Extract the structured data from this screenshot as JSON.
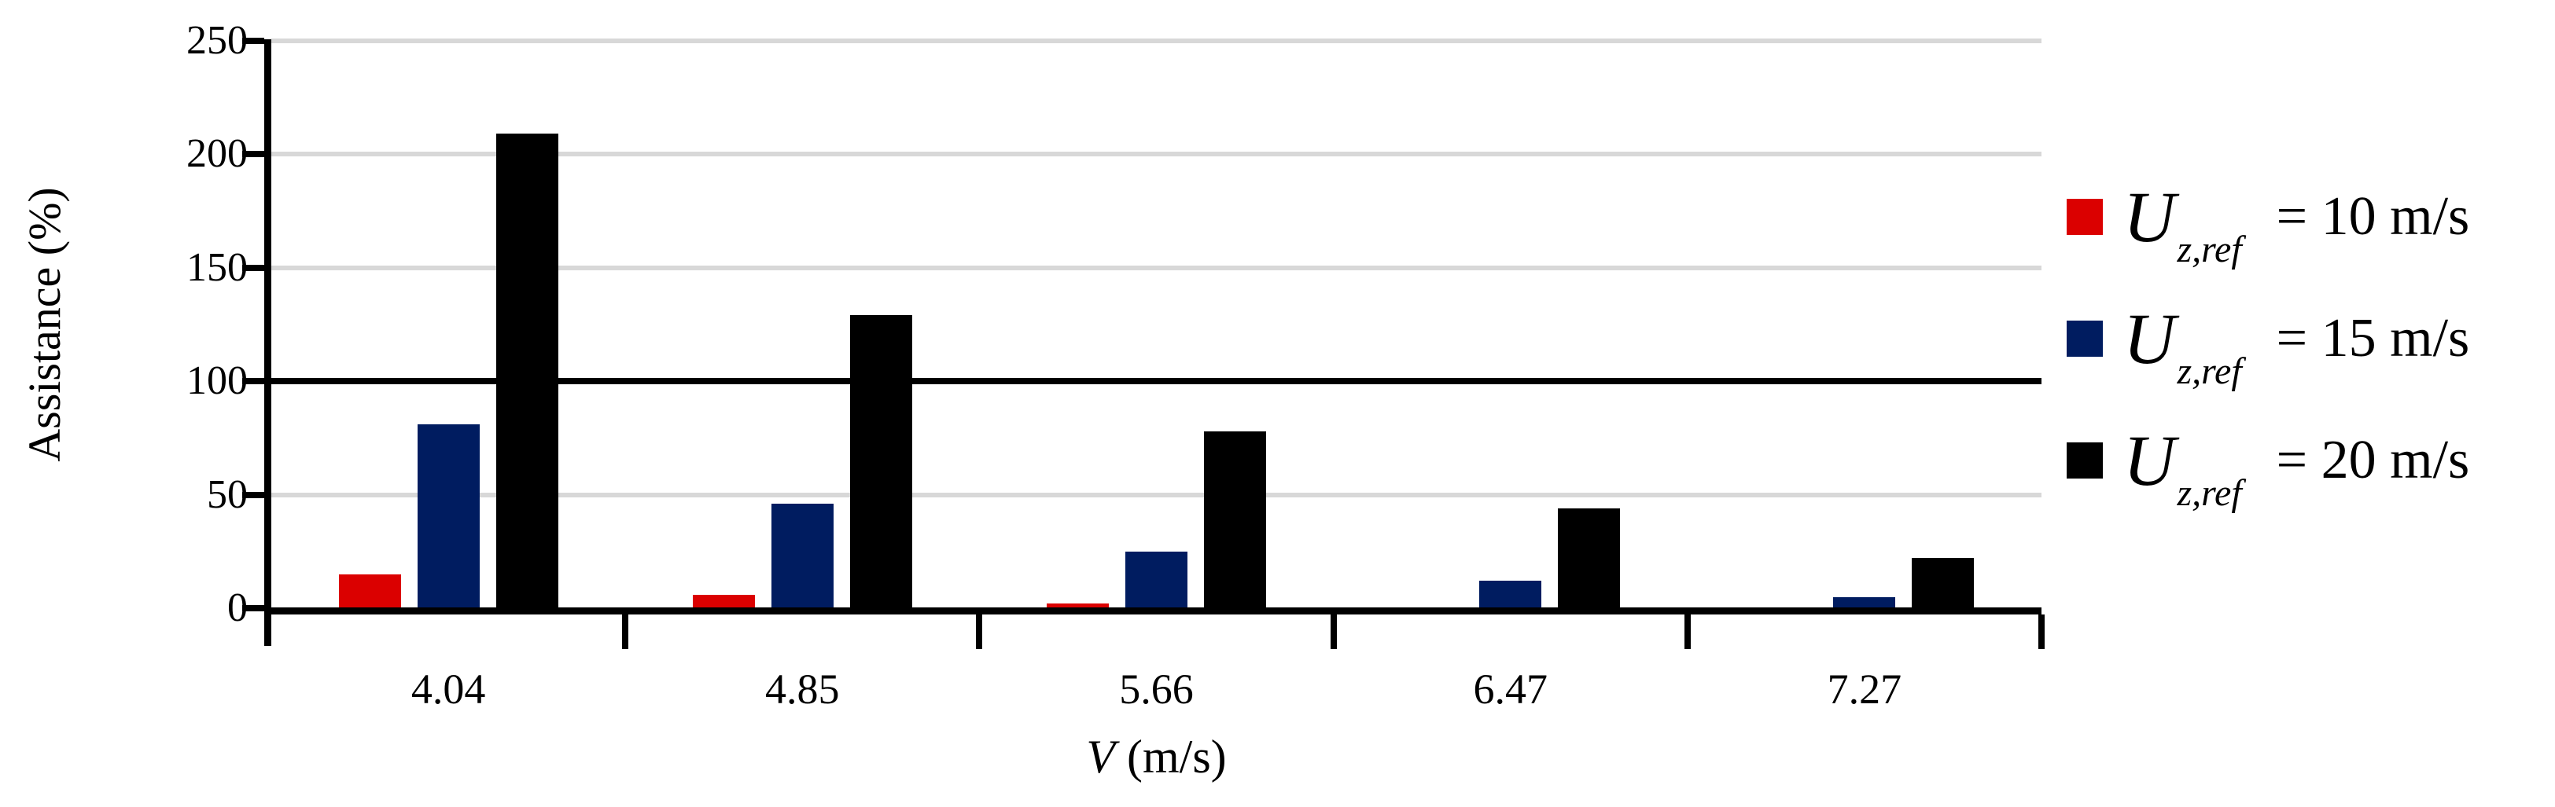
{
  "chart_data": {
    "type": "bar",
    "title": "",
    "ylabel": "Assistance (%)",
    "xlabel": "V (m/s)",
    "xlabel_var": "V",
    "xlabel_units": "(m/s)",
    "ylim": [
      0,
      250
    ],
    "yticks": [
      "0",
      "50",
      "100",
      "150",
      "200",
      "250"
    ],
    "categories": [
      "4.04",
      "4.85",
      "5.66",
      "6.47",
      "7.27"
    ],
    "series": [
      {
        "name": "Uz,ref = 10 m/s",
        "color": "#DB0000",
        "values": [
          15,
          6,
          2,
          0,
          0
        ]
      },
      {
        "name": "Uz,ref = 15 m/s",
        "color": "#001C60",
        "values": [
          81,
          46,
          25,
          12,
          5
        ]
      },
      {
        "name": "Uz,ref = 20 m/s",
        "color": "#000000",
        "values": [
          209,
          129,
          78,
          44,
          22
        ]
      }
    ],
    "legend": {
      "position": "right",
      "items": [
        {
          "var": "U",
          "subscript": "z,ref",
          "label": "= 10 m/s",
          "color": "#DB0000"
        },
        {
          "var": "U",
          "subscript": "z,ref",
          "label": "= 15 m/s",
          "color": "#001C60"
        },
        {
          "var": "U",
          "subscript": "z,ref",
          "label": "= 20 m/s",
          "color": "#000000"
        }
      ]
    },
    "gridlines": {
      "color": "#D8D8D8",
      "dark_line_value": 100,
      "interval": 50
    },
    "axes_color": "#000000",
    "legend_position": "right"
  }
}
